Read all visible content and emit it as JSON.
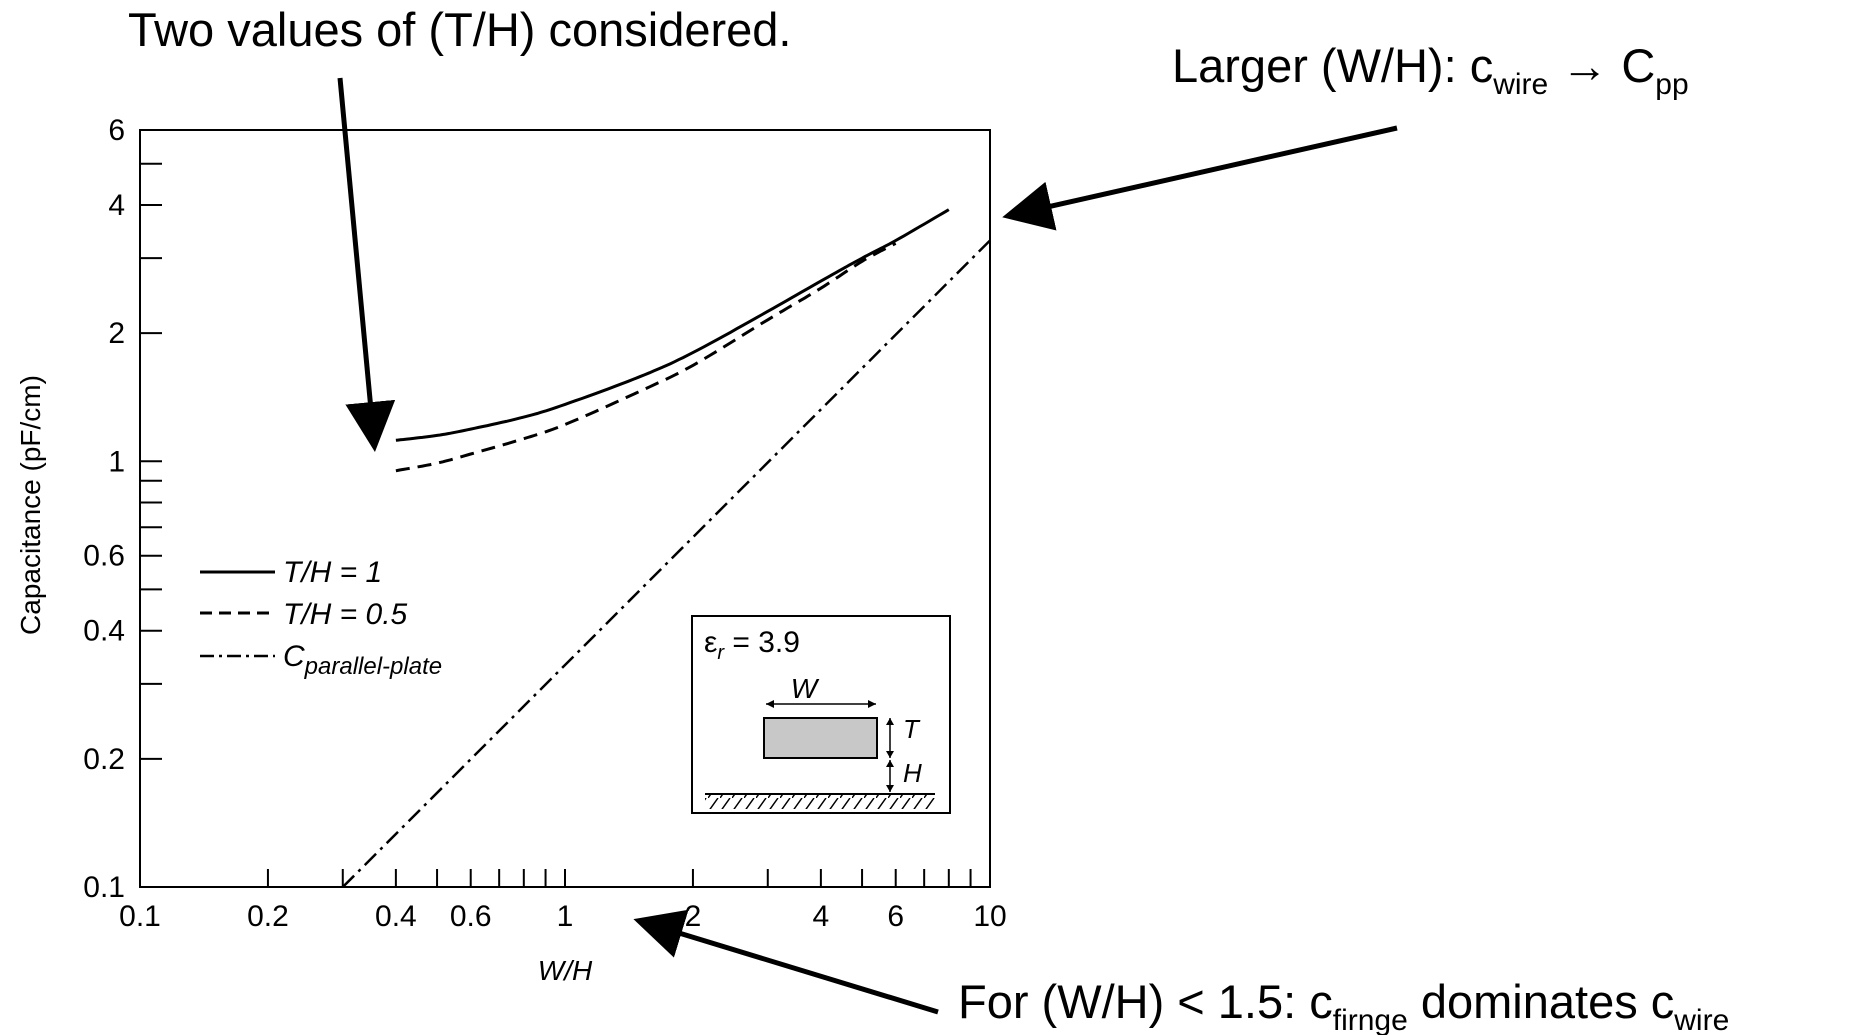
{
  "chart_data": {
    "type": "line",
    "xlabel": "W/H",
    "ylabel": "Capacitance (pF/cm)",
    "xscale": "log",
    "yscale": "log",
    "xlim": [
      0.1,
      10
    ],
    "ylim": [
      0.1,
      6
    ],
    "x_ticks": [
      {
        "value": 0.1,
        "label": "0.1"
      },
      {
        "value": 0.2,
        "label": "0.2"
      },
      {
        "value": 0.4,
        "label": "0.4"
      },
      {
        "value": 0.6,
        "label": "0.6"
      },
      {
        "value": 1,
        "label": "1"
      },
      {
        "value": 2,
        "label": "2"
      },
      {
        "value": 4,
        "label": "4"
      },
      {
        "value": 6,
        "label": "6"
      },
      {
        "value": 10,
        "label": "10"
      }
    ],
    "x_minor_ticks": [
      0.3,
      0.5,
      0.7,
      0.8,
      0.9,
      3,
      5,
      7,
      8,
      9
    ],
    "y_ticks": [
      {
        "value": 0.1,
        "label": "0.1"
      },
      {
        "value": 0.2,
        "label": "0.2"
      },
      {
        "value": 0.4,
        "label": "0.4"
      },
      {
        "value": 0.6,
        "label": "0.6"
      },
      {
        "value": 1,
        "label": "1"
      },
      {
        "value": 2,
        "label": "2"
      },
      {
        "value": 4,
        "label": "4"
      },
      {
        "value": 6,
        "label": "6"
      }
    ],
    "y_minor_ticks": [
      0.3,
      0.5,
      0.7,
      0.8,
      0.9,
      3,
      5
    ],
    "grid": false,
    "legend_position": "middle-left",
    "series": [
      {
        "name": "T/H = 1",
        "style": "solid",
        "x": [
          0.4,
          0.5,
          0.6,
          0.8,
          1,
          1.5,
          2,
          3,
          4,
          5,
          6,
          8
        ],
        "y": [
          1.12,
          1.15,
          1.19,
          1.27,
          1.36,
          1.58,
          1.8,
          2.25,
          2.65,
          3.0,
          3.3,
          3.9
        ]
      },
      {
        "name": "T/H = 0.5",
        "style": "dashed",
        "x": [
          0.4,
          0.5,
          0.6,
          0.8,
          1,
          1.5,
          2,
          3,
          4,
          5,
          6
        ],
        "y": [
          0.95,
          0.99,
          1.04,
          1.13,
          1.22,
          1.46,
          1.68,
          2.15,
          2.55,
          2.95,
          3.25
        ]
      },
      {
        "name": "C",
        "name_subscript": "parallel-plate",
        "style": "dashdot",
        "x": [
          0.3,
          10
        ],
        "y": [
          0.1,
          3.3
        ]
      }
    ],
    "inset": {
      "label": "ε",
      "label_subscript": "r",
      "value_text": " = 3.9",
      "dim_width": "W",
      "dim_thickness": "T",
      "dim_height": "H"
    }
  },
  "annotations": {
    "top_left": "Two values of (T/H) considered.",
    "top_right": {
      "prefix": "Larger (W/H): c",
      "sub1": "wire",
      "arrow": " → C",
      "sub2": "pp"
    },
    "bottom_right": {
      "prefix": "For (W/H) < 1.5:  c",
      "sub1": "firnge",
      "middle": " dominates c",
      "sub2": "wire"
    }
  }
}
